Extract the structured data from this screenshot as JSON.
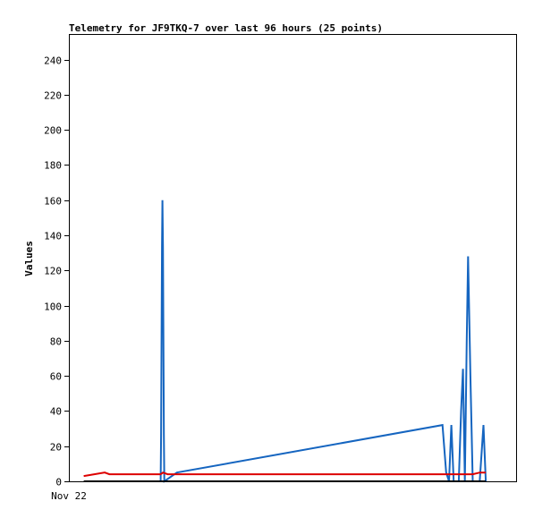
{
  "chart_data": {
    "type": "line",
    "title": "Telemetry for JF9TKQ-7 over last 96 hours (25 points)",
    "xlabel": "",
    "ylabel": "Values",
    "x_tick_labels": [
      "Nov 22"
    ],
    "ylim": [
      0,
      254
    ],
    "y_ticks": [
      0,
      20,
      40,
      60,
      80,
      100,
      120,
      140,
      160,
      180,
      200,
      220,
      240
    ],
    "xlim": [
      0,
      96
    ],
    "grid": false,
    "legend": "none",
    "series": [
      {
        "color": "#1565c0",
        "points": [
          [
            19.5,
            0
          ],
          [
            19.6,
            27
          ],
          [
            19.7,
            80
          ],
          [
            19.8,
            133
          ],
          [
            19.9,
            160
          ],
          [
            20.0,
            133
          ],
          [
            20.1,
            80
          ],
          [
            20.2,
            27
          ],
          [
            20.3,
            0
          ],
          [
            23.0,
            5
          ],
          [
            80.0,
            32
          ],
          [
            80.8,
            5
          ],
          [
            81.4,
            0
          ],
          [
            81.9,
            32
          ],
          [
            82.4,
            0
          ],
          [
            83.5,
            0
          ],
          [
            84.0,
            40
          ],
          [
            84.4,
            64
          ],
          [
            84.8,
            0
          ],
          [
            85.2,
            80
          ],
          [
            85.5,
            128
          ],
          [
            86.0,
            60
          ],
          [
            86.5,
            0
          ],
          [
            88.0,
            0
          ],
          [
            88.8,
            32
          ],
          [
            89.3,
            0
          ]
        ]
      },
      {
        "color": "#dd0000",
        "points": [
          [
            3.0,
            3
          ],
          [
            7.5,
            5
          ],
          [
            8.5,
            4
          ],
          [
            19.5,
            4
          ],
          [
            20.0,
            5
          ],
          [
            21.0,
            4
          ],
          [
            60.0,
            4
          ],
          [
            80.0,
            4
          ],
          [
            86.5,
            4
          ],
          [
            88.0,
            5
          ],
          [
            89.3,
            5
          ]
        ]
      },
      {
        "color": "#000000",
        "points": [
          [
            3.0,
            0
          ],
          [
            89.3,
            0
          ]
        ]
      }
    ]
  }
}
